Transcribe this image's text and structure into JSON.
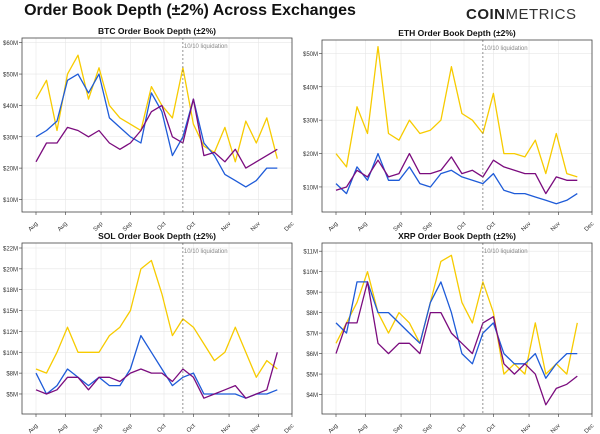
{
  "title": "Order Book Depth (±2%) Across Exchanges",
  "logo": {
    "bold": "COIN",
    "light": "METRICS"
  },
  "colors": {
    "yellow": "#F7CB00",
    "blue": "#1E5BD8",
    "purple": "#7B0C7E",
    "grid": "#e6e6e6",
    "event_line": "#666666"
  },
  "chart_data": [
    {
      "type": "line",
      "title": "BTC Order Book Depth (±2%)",
      "ylim": [
        6,
        61.5
      ],
      "yticks": [
        {
          "v": 10,
          "label": "$10M"
        },
        {
          "v": 20,
          "label": "$20M"
        },
        {
          "v": 30,
          "label": "$30M"
        },
        {
          "v": 40,
          "label": "$40M"
        },
        {
          "v": 50,
          "label": "$50M"
        },
        {
          "v": 60,
          "label": "$60M"
        }
      ],
      "annotation": {
        "date": "Oct 10",
        "label": "10/10 liquidation"
      },
      "x": [
        "Aug 01",
        "Aug 06",
        "Aug 11",
        "Aug 16",
        "Aug 21",
        "Aug 26",
        "Aug 31",
        "Sep 05",
        "Sep 10",
        "Sep 15",
        "Sep 20",
        "Sep 25",
        "Sep 30",
        "Oct 05",
        "Oct 10",
        "Oct 15",
        "Oct 20",
        "Oct 25",
        "Oct 30",
        "Nov 04",
        "Nov 09",
        "Nov 14",
        "Nov 19",
        "Nov 24"
      ],
      "series": [
        {
          "color": "yellow",
          "values": [
            42,
            48,
            32,
            50,
            56,
            42,
            52,
            40,
            36,
            34,
            32,
            46,
            40,
            36,
            52,
            34,
            27,
            25,
            33,
            22,
            35,
            28,
            36,
            23
          ]
        },
        {
          "color": "blue",
          "values": [
            30,
            32,
            35,
            48,
            50,
            44,
            50,
            36,
            33,
            30,
            28,
            44,
            38,
            24,
            30,
            42,
            28,
            24,
            18,
            16,
            14,
            16,
            20,
            20
          ]
        },
        {
          "color": "purple",
          "values": [
            22,
            28,
            28,
            33,
            32,
            30,
            32,
            28,
            26,
            28,
            32,
            38,
            40,
            30,
            28,
            42,
            24,
            25,
            22,
            26,
            20,
            22,
            24,
            26
          ]
        }
      ]
    },
    {
      "type": "line",
      "title": "ETH Order Book Depth (±2%)",
      "ylim": [
        2.5,
        54
      ],
      "yticks": [
        {
          "v": 10,
          "label": "$10M"
        },
        {
          "v": 20,
          "label": "$20M"
        },
        {
          "v": 30,
          "label": "$30M"
        },
        {
          "v": 40,
          "label": "$40M"
        },
        {
          "v": 50,
          "label": "$50M"
        }
      ],
      "annotation": {
        "date": "Oct 10",
        "label": "10/10 liquidation"
      },
      "x": [
        "Aug 01",
        "Aug 06",
        "Aug 11",
        "Aug 16",
        "Aug 21",
        "Aug 26",
        "Aug 31",
        "Sep 05",
        "Sep 10",
        "Sep 15",
        "Sep 20",
        "Sep 25",
        "Sep 30",
        "Oct 05",
        "Oct 10",
        "Oct 15",
        "Oct 20",
        "Oct 25",
        "Oct 30",
        "Nov 04",
        "Nov 09",
        "Nov 14",
        "Nov 19",
        "Nov 24"
      ],
      "series": [
        {
          "color": "yellow",
          "values": [
            20,
            16,
            34,
            26,
            52,
            26,
            24,
            30,
            26,
            27,
            30,
            46,
            32,
            30,
            26,
            38,
            20,
            20,
            19,
            24,
            14,
            26,
            14,
            13
          ]
        },
        {
          "color": "blue",
          "values": [
            11,
            8,
            16,
            12,
            20,
            12,
            12,
            16,
            11,
            10,
            14,
            15,
            13,
            12,
            11,
            14,
            9,
            8,
            8,
            7,
            6,
            5,
            6,
            8
          ]
        },
        {
          "color": "purple",
          "values": [
            9,
            10,
            15,
            13,
            18,
            13,
            14,
            20,
            14,
            14,
            15,
            19,
            14,
            15,
            13,
            18,
            16,
            15,
            14,
            14,
            8,
            13,
            12,
            12
          ]
        }
      ]
    },
    {
      "type": "line",
      "title": "SOL Order Book Depth (±2%)",
      "ylim": [
        2.6,
        23.1
      ],
      "yticks": [
        {
          "v": 5,
          "label": "$5M"
        },
        {
          "v": 7.5,
          "label": "$8M"
        },
        {
          "v": 10,
          "label": "$10M"
        },
        {
          "v": 12.5,
          "label": "$12M"
        },
        {
          "v": 15,
          "label": "$15M"
        },
        {
          "v": 17.5,
          "label": "$18M"
        },
        {
          "v": 20,
          "label": "$20M"
        },
        {
          "v": 22.5,
          "label": "$22M"
        }
      ],
      "annotation": {
        "date": "Oct 10",
        "label": "10/10 liquidation"
      },
      "x": [
        "Aug 01",
        "Aug 06",
        "Aug 11",
        "Aug 16",
        "Aug 21",
        "Aug 26",
        "Aug 31",
        "Sep 05",
        "Sep 10",
        "Sep 15",
        "Sep 20",
        "Sep 25",
        "Sep 30",
        "Oct 05",
        "Oct 10",
        "Oct 15",
        "Oct 20",
        "Oct 25",
        "Oct 30",
        "Nov 04",
        "Nov 09",
        "Nov 14",
        "Nov 19",
        "Nov 24"
      ],
      "series": [
        {
          "color": "yellow",
          "values": [
            8,
            7.5,
            10,
            13,
            10,
            10,
            10,
            12,
            13,
            15,
            20,
            21,
            17,
            12,
            14,
            13,
            11,
            9,
            10,
            13,
            10,
            7,
            9,
            8
          ]
        },
        {
          "color": "blue",
          "values": [
            7.5,
            5,
            6,
            8,
            7,
            6,
            7,
            6,
            6,
            8,
            12,
            10,
            8,
            6,
            7,
            7.5,
            5,
            5,
            5,
            5,
            4.5,
            5,
            5,
            5.5
          ]
        },
        {
          "color": "purple",
          "values": [
            5.5,
            5,
            5.5,
            7,
            7,
            5.5,
            7,
            7,
            6.5,
            7.5,
            8,
            7.5,
            7.5,
            6.5,
            8,
            7,
            4.5,
            5,
            5.5,
            6,
            4.5,
            5,
            5.5,
            10
          ]
        }
      ]
    },
    {
      "type": "line",
      "title": "XRP Order Book Depth (±2%)",
      "ylim": [
        3.05,
        11.4
      ],
      "yticks": [
        {
          "v": 4,
          "label": "$4M"
        },
        {
          "v": 5,
          "label": "$5M"
        },
        {
          "v": 6,
          "label": "$6M"
        },
        {
          "v": 7,
          "label": "$7M"
        },
        {
          "v": 8,
          "label": "$8M"
        },
        {
          "v": 9,
          "label": "$9M"
        },
        {
          "v": 10,
          "label": "$10M"
        },
        {
          "v": 11,
          "label": "$11M"
        }
      ],
      "annotation": {
        "date": "Oct 10",
        "label": "10/10 liquidation"
      },
      "x": [
        "Aug 01",
        "Aug 06",
        "Aug 11",
        "Aug 16",
        "Aug 21",
        "Aug 26",
        "Aug 31",
        "Sep 05",
        "Sep 10",
        "Sep 15",
        "Sep 20",
        "Sep 25",
        "Sep 30",
        "Oct 05",
        "Oct 10",
        "Oct 15",
        "Oct 20",
        "Oct 25",
        "Oct 30",
        "Nov 04",
        "Nov 09",
        "Nov 14",
        "Nov 19",
        "Nov 24"
      ],
      "series": [
        {
          "color": "yellow",
          "values": [
            6.5,
            7.5,
            8.5,
            10,
            8,
            7,
            8,
            7.5,
            6.5,
            8.5,
            10.5,
            10.8,
            8.5,
            7.5,
            9.5,
            8,
            5,
            5.5,
            5,
            7.5,
            5,
            5.5,
            5,
            7.5
          ]
        },
        {
          "color": "blue",
          "values": [
            7.5,
            7,
            9.5,
            9.5,
            8,
            8,
            7.5,
            7,
            6.5,
            8.5,
            9.5,
            8,
            6,
            5.5,
            7,
            7.5,
            6,
            5.5,
            5.5,
            6,
            4.8,
            5.5,
            6,
            6
          ]
        },
        {
          "color": "purple",
          "values": [
            6,
            7.5,
            7.5,
            9.5,
            6.5,
            6,
            6.5,
            6.5,
            6,
            8,
            8,
            7,
            6.5,
            6,
            7.5,
            7.8,
            5.5,
            5,
            5.5,
            5,
            3.5,
            4.3,
            4.5,
            4.9
          ]
        }
      ]
    }
  ],
  "xticks": [
    {
      "date": "Aug 01",
      "label": "Aug"
    },
    {
      "date": "Aug 15",
      "label": "Aug"
    },
    {
      "date": "Sep 01",
      "label": "Sep"
    },
    {
      "date": "Sep 15",
      "label": "Sep"
    },
    {
      "date": "Oct 01",
      "label": "Oct"
    },
    {
      "date": "Oct 15",
      "label": "Oct"
    },
    {
      "date": "Nov 01",
      "label": "Nov"
    },
    {
      "date": "Nov 15",
      "label": "Nov"
    },
    {
      "date": "Dec 01",
      "label": "Dec"
    }
  ]
}
